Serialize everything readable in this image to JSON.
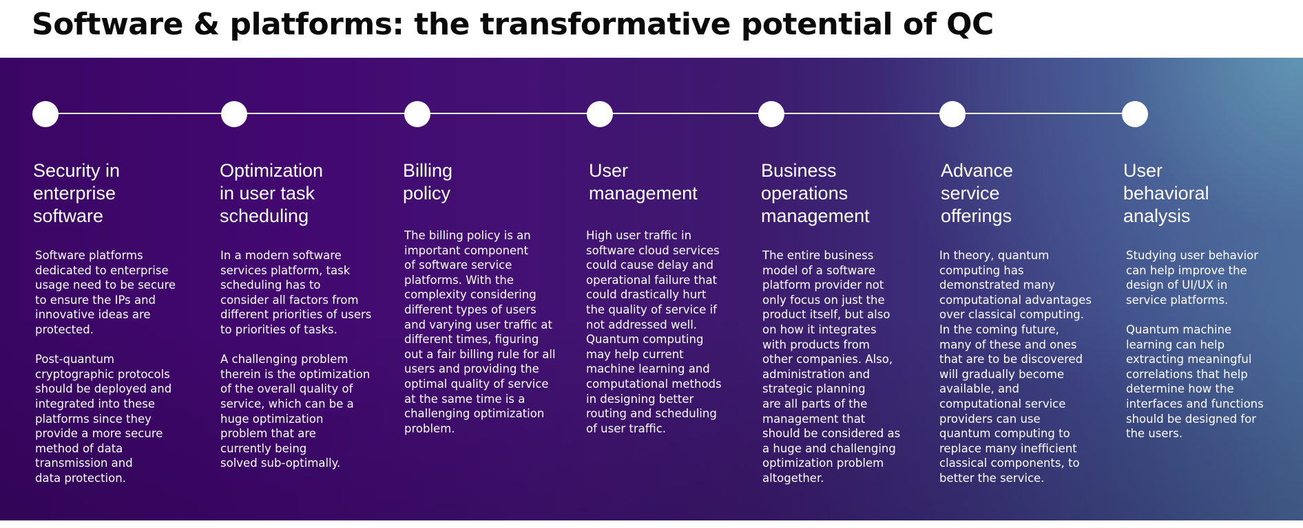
{
  "title": "Software & platforms: the transformative potential of QC",
  "colors": {
    "panel_dark": "#3a0664",
    "panel_light": "#4a6b98",
    "text": "#ffffff",
    "title_text": "#0a0a0a"
  },
  "columns": [
    {
      "title": "Security in\nenterprise\nsoftware",
      "body": "Software platforms\ndedicated to enterprise\nusage need to be secure\nto ensure the IPs and\ninnovative ideas are\nprotected.\n\nPost-quantum\ncryptographic protocols\nshould be deployed and\nintegrated into these\nplatforms since they\nprovide a more secure\nmethod of data\ntransmission and\ndata protection."
    },
    {
      "title": "Optimization\nin user task\nscheduling",
      "body": "In a modern software\nservices platform, task\nscheduling has to\nconsider all factors from\ndifferent priorities of users\nto priorities of tasks.\n\nA challenging problem\ntherein is the optimization\nof the overall quality of\nservice, which can be a\nhuge optimization\nproblem that are\ncurrently being\nsolved sub-optimally."
    },
    {
      "title": "Billing\npolicy",
      "body": "The billing policy is an\nimportant component\nof software service\nplatforms. With the\ncomplexity considering\ndifferent types of users\nand varying user traffic at\ndifferent times, figuring\nout a fair billing rule for all\nusers and providing the\noptimal quality of service\nat the same time is a\nchallenging optimization\nproblem."
    },
    {
      "title": "User\nmanagement",
      "body": "High user traffic in\nsoftware cloud services\ncould cause delay and\noperational failure that\ncould drastically hurt\nthe quality of service if\nnot addressed well.\nQuantum computing\nmay help current\nmachine learning and\ncomputational methods\nin designing better\nrouting and scheduling\nof user traffic."
    },
    {
      "title": "Business\noperations\nmanagement",
      "body": "The entire business\nmodel of a software\nplatform provider not\nonly focus on just the\nproduct itself, but also\non how it integrates\nwith products from\nother companies. Also,\nadministration and\nstrategic planning\nare all parts of the\nmanagement that\nshould be considered as\na huge and challenging\noptimization problem\naltogether."
    },
    {
      "title": "Advance\nservice\nofferings",
      "body": "In theory, quantum\ncomputing has\ndemonstrated many\ncomputational advantages\nover classical computing.\nIn the coming future,\nmany of these and ones\nthat are to be discovered\nwill gradually become\navailable, and\ncomputational service\nproviders can use\nquantum computing to\nreplace many inefficient\nclassical components, to\nbetter the service."
    },
    {
      "title": "User\nbehavioral\nanalysis",
      "body": "Studying user behavior\ncan help improve the\ndesign of UI/UX in\nservice platforms.\n\nQuantum machine\nlearning can help\nextracting meaningful\ncorrelations that help\ndetermine how the\ninterfaces and functions\nshould be designed for\nthe users."
    }
  ]
}
